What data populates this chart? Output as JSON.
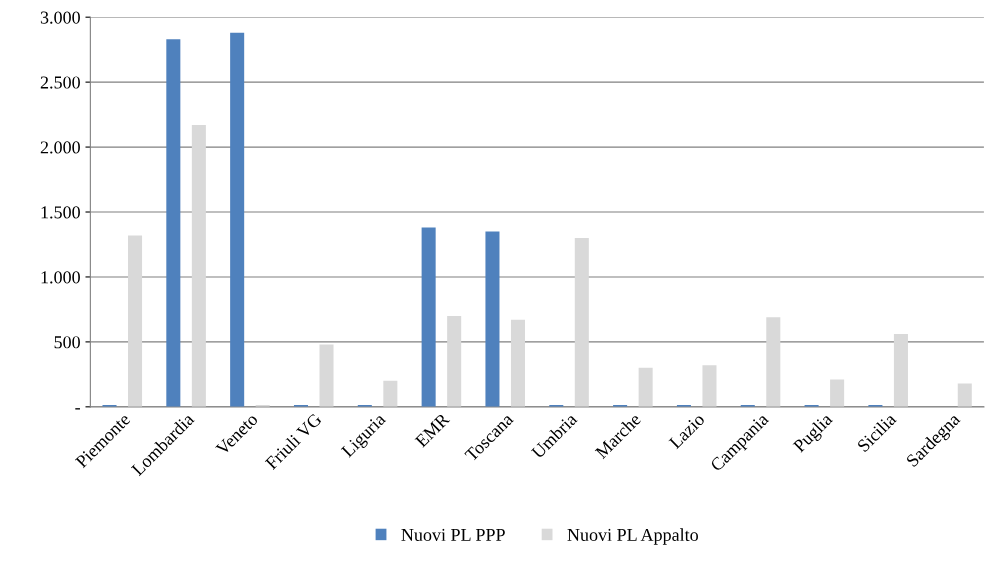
{
  "chart_data": {
    "type": "bar",
    "categories": [
      "Piemonte",
      "Lombardia",
      "Veneto",
      "Friuli VG",
      "Liguria",
      "EMR",
      "Toscana",
      "Umbria",
      "Marche",
      "Lazio",
      "Campania",
      "Puglia",
      "Sicilia",
      "Sardegna"
    ],
    "series": [
      {
        "name": "Nuovi PL PPP",
        "color": "#4f81bd",
        "values": [
          15,
          2830,
          2880,
          15,
          15,
          1380,
          1350,
          15,
          15,
          15,
          15,
          15,
          15,
          null
        ]
      },
      {
        "name": "Nuovi PL Appalto",
        "color": "#d9d9d9",
        "values": [
          1320,
          2170,
          15,
          480,
          200,
          700,
          670,
          1300,
          300,
          320,
          690,
          210,
          560,
          180
        ]
      }
    ],
    "ylim": [
      0,
      3000
    ],
    "yticks": [
      {
        "value": 0,
        "label": "-"
      },
      {
        "value": 500,
        "label": "500"
      },
      {
        "value": 1000,
        "label": "1.000"
      },
      {
        "value": 1500,
        "label": "1.500"
      },
      {
        "value": 2000,
        "label": "2.000"
      },
      {
        "value": 2500,
        "label": "2.500"
      },
      {
        "value": 3000,
        "label": "3.000"
      }
    ],
    "grid": "y",
    "legend": "bottom"
  }
}
